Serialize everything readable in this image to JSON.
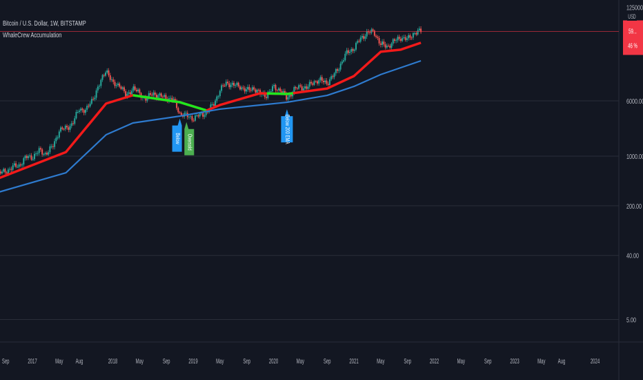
{
  "header": {
    "symbol_title": "Bitcoin / U.S. Dollar, 1W, BITSTAMP",
    "indicator_title": "WhaleCrew Accumulation"
  },
  "price_axis": {
    "scale": "log",
    "currency": "USD",
    "ticks": [
      "125000.00",
      "6000.00",
      "1000.00",
      "200.00",
      "40.00",
      "5.00"
    ],
    "current_price_label": "59...",
    "current_change_label": "46 %",
    "current_price_color": "#f23645"
  },
  "chart_data": {
    "type": "candlestick",
    "title": "Bitcoin / U.S. Dollar, 1W, BITSTAMP",
    "y_scale": "log",
    "ylim": [
      3,
      160000
    ],
    "xlim": [
      "2016-08",
      "2024-06"
    ],
    "grid": true,
    "x_ticks": [
      {
        "label": "Sep",
        "date": "2016-09"
      },
      {
        "label": "2017",
        "date": "2017-01"
      },
      {
        "label": "May",
        "date": "2017-05"
      },
      {
        "label": "Aug",
        "date": "2017-08"
      },
      {
        "label": "2018",
        "date": "2018-01"
      },
      {
        "label": "May",
        "date": "2018-05"
      },
      {
        "label": "Sep",
        "date": "2018-09"
      },
      {
        "label": "2019",
        "date": "2019-01"
      },
      {
        "label": "May",
        "date": "2019-05"
      },
      {
        "label": "Sep",
        "date": "2019-09"
      },
      {
        "label": "2020",
        "date": "2020-01"
      },
      {
        "label": "May",
        "date": "2020-05"
      },
      {
        "label": "Sep",
        "date": "2020-09"
      },
      {
        "label": "2021",
        "date": "2021-01"
      },
      {
        "label": "May",
        "date": "2021-05"
      },
      {
        "label": "Sep",
        "date": "2021-09"
      },
      {
        "label": "2022",
        "date": "2022-01"
      },
      {
        "label": "May",
        "date": "2022-05"
      },
      {
        "label": "Sep",
        "date": "2022-09"
      },
      {
        "label": "2023",
        "date": "2023-01"
      },
      {
        "label": "May",
        "date": "2023-05"
      },
      {
        "label": "Aug",
        "date": "2023-08"
      },
      {
        "label": "2024",
        "date": "2024-01"
      }
    ],
    "price_closes": [
      [
        "2016-08",
        575
      ],
      [
        "2016-09",
        610
      ],
      [
        "2016-10",
        700
      ],
      [
        "2016-11",
        740
      ],
      [
        "2016-12",
        960
      ],
      [
        "2017-01",
        970
      ],
      [
        "2017-02",
        1190
      ],
      [
        "2017-03",
        1080
      ],
      [
        "2017-04",
        1350
      ],
      [
        "2017-05",
        2300
      ],
      [
        "2017-06",
        2480
      ],
      [
        "2017-07",
        2870
      ],
      [
        "2017-08",
        4700
      ],
      [
        "2017-09",
        4340
      ],
      [
        "2017-10",
        6450
      ],
      [
        "2017-11",
        10000
      ],
      [
        "2017-12",
        17000
      ],
      [
        "2018-01",
        10200
      ],
      [
        "2018-02",
        10300
      ],
      [
        "2018-03",
        6900
      ],
      [
        "2018-04",
        9200
      ],
      [
        "2018-05",
        7500
      ],
      [
        "2018-06",
        6400
      ],
      [
        "2018-07",
        7700
      ],
      [
        "2018-08",
        7000
      ],
      [
        "2018-09",
        6600
      ],
      [
        "2018-10",
        6300
      ],
      [
        "2018-11",
        4000
      ],
      [
        "2018-12",
        3700
      ],
      [
        "2019-01",
        3400
      ],
      [
        "2019-02",
        3800
      ],
      [
        "2019-03",
        4100
      ],
      [
        "2019-04",
        5300
      ],
      [
        "2019-05",
        8500
      ],
      [
        "2019-06",
        10800
      ],
      [
        "2019-07",
        10000
      ],
      [
        "2019-08",
        9600
      ],
      [
        "2019-09",
        8300
      ],
      [
        "2019-10",
        9200
      ],
      [
        "2019-11",
        7500
      ],
      [
        "2019-12",
        7200
      ],
      [
        "2020-01",
        9350
      ],
      [
        "2020-02",
        8600
      ],
      [
        "2020-03",
        6400
      ],
      [
        "2020-04",
        8600
      ],
      [
        "2020-05",
        9450
      ],
      [
        "2020-06",
        9140
      ],
      [
        "2020-07",
        11300
      ],
      [
        "2020-08",
        11650
      ],
      [
        "2020-09",
        10780
      ],
      [
        "2020-10",
        13800
      ],
      [
        "2020-11",
        19700
      ],
      [
        "2020-12",
        29000
      ],
      [
        "2021-01",
        33100
      ],
      [
        "2021-02",
        45200
      ],
      [
        "2021-03",
        55000
      ],
      [
        "2021-04",
        56000
      ],
      [
        "2021-05",
        37300
      ],
      [
        "2021-06",
        35000
      ],
      [
        "2021-07",
        41500
      ],
      [
        "2021-08",
        47100
      ],
      [
        "2021-09",
        43800
      ],
      [
        "2021-10",
        55000
      ],
      [
        "2021-11",
        57000
      ]
    ],
    "series": [
      {
        "color": "#f21a1a",
        "accumulation_color": "#1ee81e",
        "values": [
          [
            "2016-08",
            490
          ],
          [
            "2017-06",
            1140
          ],
          [
            "2017-12",
            5500
          ],
          [
            "2018-04",
            7200
          ],
          [
            "2018-11",
            5750
          ],
          [
            "2019-03",
            4390
          ],
          [
            "2019-05",
            5250
          ],
          [
            "2019-11",
            7680
          ],
          [
            "2020-03",
            7500
          ],
          [
            "2020-09",
            8960
          ],
          [
            "2021-01",
            13400
          ],
          [
            "2021-05",
            29500
          ],
          [
            "2021-08",
            31600
          ],
          [
            "2021-11",
            39500
          ]
        ]
      },
      {
        "color": "#2e7bcf",
        "values": [
          [
            "2016-08",
            312
          ],
          [
            "2017-06",
            584
          ],
          [
            "2017-12",
            2000
          ],
          [
            "2018-04",
            2930
          ],
          [
            "2018-11",
            3660
          ],
          [
            "2019-05",
            4590
          ],
          [
            "2020-03",
            5730
          ],
          [
            "2020-09",
            7170
          ],
          [
            "2021-01",
            9590
          ],
          [
            "2021-05",
            14100
          ],
          [
            "2021-11",
            22000
          ]
        ]
      }
    ],
    "accumulation_ranges": [
      [
        "2018-04",
        "2019-03"
      ],
      [
        "2019-12",
        "2020-04"
      ]
    ],
    "annotations": [
      {
        "text": "Below",
        "date": "2018-11",
        "price": 3700,
        "color": "#2196f3"
      },
      {
        "text": "Oversold",
        "date": "2018-12",
        "price": 3300,
        "color": "#4caf50"
      },
      {
        "text": "Below 200 EMA",
        "date": "2020-03",
        "price": 5000,
        "color": "#2196f3"
      }
    ],
    "candle_colors": {
      "up": "#26a69a",
      "down": "#ef5350"
    }
  }
}
